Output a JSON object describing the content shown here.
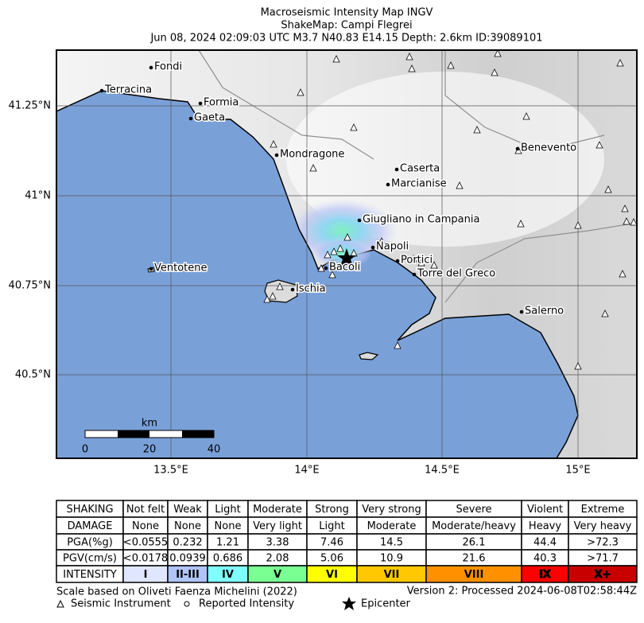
{
  "header": {
    "lines": [
      "Macroseismic Intensity Map INGV",
      "ShakeMap: Campi Flegrei",
      "Jun 08, 2024 02:09:03 UTC M3.7 N40.83 E14.15 Depth: 2.6km ID:39089101"
    ]
  },
  "map": {
    "lat_labels": [
      "41.25°N",
      "41°N",
      "40.75°N",
      "40.5°N"
    ],
    "lon_labels": [
      "13.5°E",
      "14°E",
      "14.5°E",
      "15°E"
    ],
    "places": [
      "Fondi",
      "Terracina",
      "Formia",
      "Gaeta",
      "Mondragone",
      "Caserta",
      "Marcianise",
      "Benevento",
      "Giugliano in Campania",
      "Napoli",
      "Portici",
      "Bacoli",
      "Torre del Greco",
      "Ventotene",
      "Ischia",
      "Salerno"
    ],
    "scale_bar": {
      "unit": "km",
      "labels": [
        "0",
        "20",
        "40"
      ]
    }
  },
  "table": {
    "rows": [
      [
        "SHAKING",
        "Not felt",
        "Weak",
        "Light",
        "Moderate",
        "Strong",
        "Very strong",
        "Severe",
        "Violent",
        "Extreme"
      ],
      [
        "DAMAGE",
        "None",
        "None",
        "None",
        "Very light",
        "Light",
        "Moderate",
        "Moderate/heavy",
        "Heavy",
        "Very heavy"
      ],
      [
        "PGA(%g)",
        "<0.0555",
        "0.232",
        "1.21",
        "3.38",
        "7.46",
        "14.5",
        "26.1",
        "44.4",
        ">72.3"
      ],
      [
        "PGV(cm/s)",
        "<0.0178",
        "0.0939",
        "0.686",
        "2.08",
        "5.06",
        "10.9",
        "21.6",
        "40.3",
        ">71.7"
      ],
      [
        "INTENSITY",
        "I",
        "II-III",
        "IV",
        "V",
        "VI",
        "VII",
        "VIII",
        "IX",
        "X+"
      ]
    ]
  },
  "footer": {
    "scale_note": "Scale based on Oliveti Faenza Michelini (2022)",
    "version": "Version 2: Processed 2024-06-08T02:58:44Z",
    "legend": [
      "Seismic Instrument",
      "Reported Intensity",
      "Epicenter"
    ]
  }
}
